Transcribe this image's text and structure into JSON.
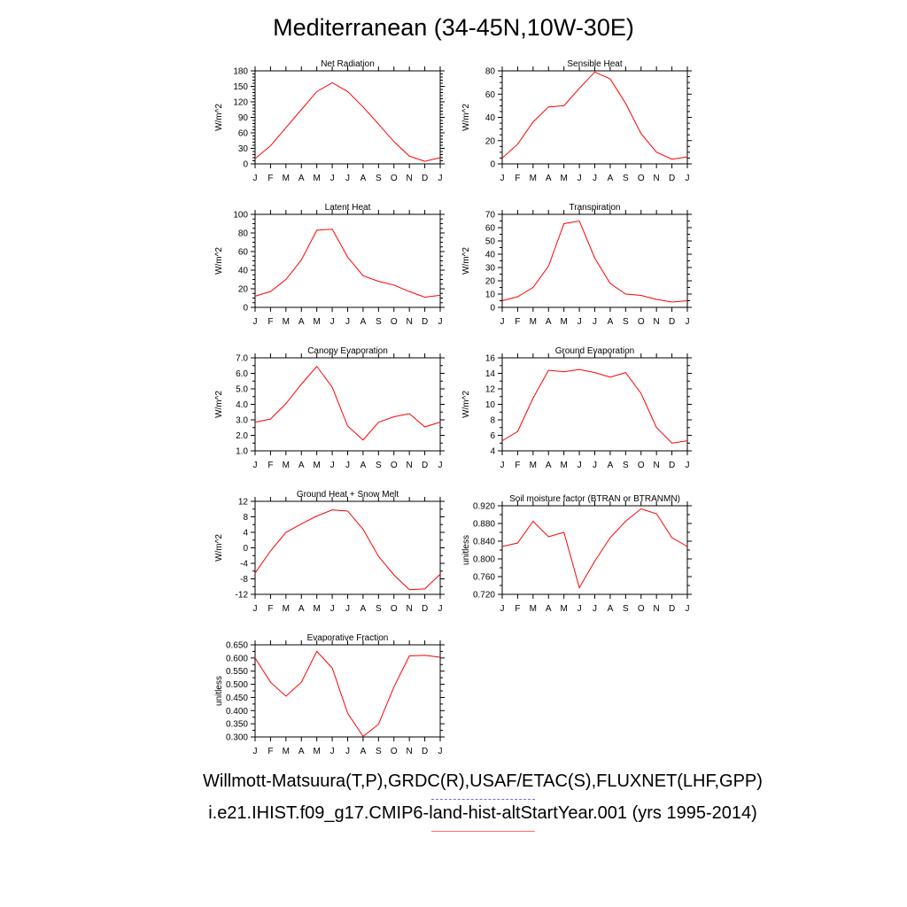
{
  "title": "Mediterranean (34-45N,10W-30E)",
  "footer": {
    "obs_sources": "Willmott-Matsuura(T,P),GRDC(R),USAF/ETAC(S),FLUXNET(LHF,GPP)",
    "model_case": "i.e21.IHIST.f09_g17.CMIP6-land-hist-altStartYear.001 (yrs 1995-2014)",
    "obs_line_color": "#6b6bff",
    "model_line_color": "#ff6b6b"
  },
  "line_color": "#ff0000",
  "chart_data": [
    {
      "type": "line",
      "title": "Net Radiation",
      "ylabel": "W/m^2",
      "categories": [
        "J",
        "F",
        "M",
        "A",
        "M",
        "J",
        "J",
        "A",
        "S",
        "O",
        "N",
        "D",
        "J"
      ],
      "ylim": [
        0,
        180
      ],
      "yticks": [
        "0",
        "30",
        "60",
        "90",
        "120",
        "150",
        "180"
      ],
      "yminor": 5,
      "values": [
        10,
        35,
        70,
        105,
        140,
        157,
        140,
        110,
        77,
        43,
        15,
        5,
        12
      ]
    },
    {
      "type": "line",
      "title": "Sensible Heat",
      "ylabel": "W/m^2",
      "categories": [
        "J",
        "F",
        "M",
        "A",
        "M",
        "J",
        "J",
        "A",
        "S",
        "O",
        "N",
        "D",
        "J"
      ],
      "ylim": [
        0,
        80
      ],
      "yticks": [
        "0",
        "20",
        "40",
        "60",
        "80"
      ],
      "yminor": 4,
      "values": [
        5,
        17,
        36,
        49,
        50,
        65,
        79,
        73,
        52,
        26,
        10,
        4,
        6
      ]
    },
    {
      "type": "line",
      "title": "Latent Heat",
      "ylabel": "W/m^2",
      "categories": [
        "J",
        "F",
        "M",
        "A",
        "M",
        "J",
        "J",
        "A",
        "S",
        "O",
        "N",
        "D",
        "J"
      ],
      "ylim": [
        0,
        100
      ],
      "yticks": [
        "0",
        "20",
        "40",
        "60",
        "80",
        "100"
      ],
      "yminor": 4,
      "values": [
        12,
        17,
        30,
        51,
        83,
        84,
        54,
        34,
        28,
        24,
        17,
        11,
        13
      ]
    },
    {
      "type": "line",
      "title": "Transpiration",
      "ylabel": "W/m^2",
      "categories": [
        "J",
        "F",
        "M",
        "A",
        "M",
        "J",
        "J",
        "A",
        "S",
        "O",
        "N",
        "D",
        "J"
      ],
      "ylim": [
        0,
        70
      ],
      "yticks": [
        "0",
        "10",
        "20",
        "30",
        "40",
        "50",
        "60",
        "70"
      ],
      "yminor": 2,
      "values": [
        5,
        8,
        15,
        31,
        63,
        65,
        37,
        18,
        10,
        9,
        6,
        4,
        5
      ]
    },
    {
      "type": "line",
      "title": "Canopy Evaporation",
      "ylabel": "W/m^2",
      "categories": [
        "J",
        "F",
        "M",
        "A",
        "M",
        "J",
        "J",
        "A",
        "S",
        "O",
        "N",
        "D",
        "J"
      ],
      "ylim": [
        1.0,
        7.0
      ],
      "yticks": [
        "1.0",
        "2.0",
        "3.0",
        "4.0",
        "5.0",
        "6.0",
        "7.0"
      ],
      "yminor": 2,
      "values": [
        2.85,
        3.05,
        4.05,
        5.3,
        6.45,
        5.1,
        2.6,
        1.7,
        2.85,
        3.2,
        3.4,
        2.55,
        2.85
      ]
    },
    {
      "type": "line",
      "title": "Ground Evaporation",
      "ylabel": "W/m^2",
      "categories": [
        "J",
        "F",
        "M",
        "A",
        "M",
        "J",
        "J",
        "A",
        "S",
        "O",
        "N",
        "D",
        "J"
      ],
      "ylim": [
        4,
        16
      ],
      "yticks": [
        "4",
        "6",
        "8",
        "10",
        "12",
        "14",
        "16"
      ],
      "yminor": 2,
      "values": [
        5.3,
        6.5,
        10.8,
        14.4,
        14.2,
        14.5,
        14.1,
        13.5,
        14.1,
        11.4,
        7.0,
        5.0,
        5.3
      ]
    },
    {
      "type": "line",
      "title": "Ground Heat + Snow Melt",
      "ylabel": "W/m^2",
      "categories": [
        "J",
        "F",
        "M",
        "A",
        "M",
        "J",
        "J",
        "A",
        "S",
        "O",
        "N",
        "D",
        "J"
      ],
      "ylim": [
        -12,
        12
      ],
      "yticks": [
        "-12",
        "-8",
        "-4",
        "0",
        "4",
        "8",
        "12"
      ],
      "yminor": 2,
      "values": [
        -6.5,
        -0.8,
        4.0,
        6.2,
        8.2,
        9.8,
        9.5,
        4.8,
        -2.2,
        -7.0,
        -10.8,
        -10.6,
        -6.8
      ]
    },
    {
      "type": "line",
      "title": "Soil moisture factor (BTRAN or BTRANMN)",
      "ylabel": "unitless",
      "categories": [
        "J",
        "F",
        "M",
        "A",
        "M",
        "J",
        "J",
        "A",
        "S",
        "O",
        "N",
        "D",
        "J"
      ],
      "ylim": [
        0.72,
        0.92
      ],
      "yticks": [
        "0.720",
        "0.760",
        "0.800",
        "0.840",
        "0.880",
        "0.920"
      ],
      "yminor": 2,
      "values": [
        0.828,
        0.836,
        0.885,
        0.85,
        0.86,
        0.735,
        0.795,
        0.848,
        0.885,
        0.913,
        0.902,
        0.848,
        0.828
      ]
    },
    {
      "type": "line",
      "title": "Evaporative Fraction",
      "ylabel": "unitless",
      "categories": [
        "J",
        "F",
        "M",
        "A",
        "M",
        "J",
        "J",
        "A",
        "S",
        "O",
        "N",
        "D",
        "J"
      ],
      "ylim": [
        0.3,
        0.65
      ],
      "yticks": [
        "0.300",
        "0.350",
        "0.400",
        "0.450",
        "0.500",
        "0.550",
        "0.600",
        "0.650"
      ],
      "yminor": 2,
      "values": [
        0.6,
        0.508,
        0.455,
        0.508,
        0.625,
        0.562,
        0.39,
        0.302,
        0.348,
        0.49,
        0.608,
        0.61,
        0.603
      ]
    }
  ]
}
